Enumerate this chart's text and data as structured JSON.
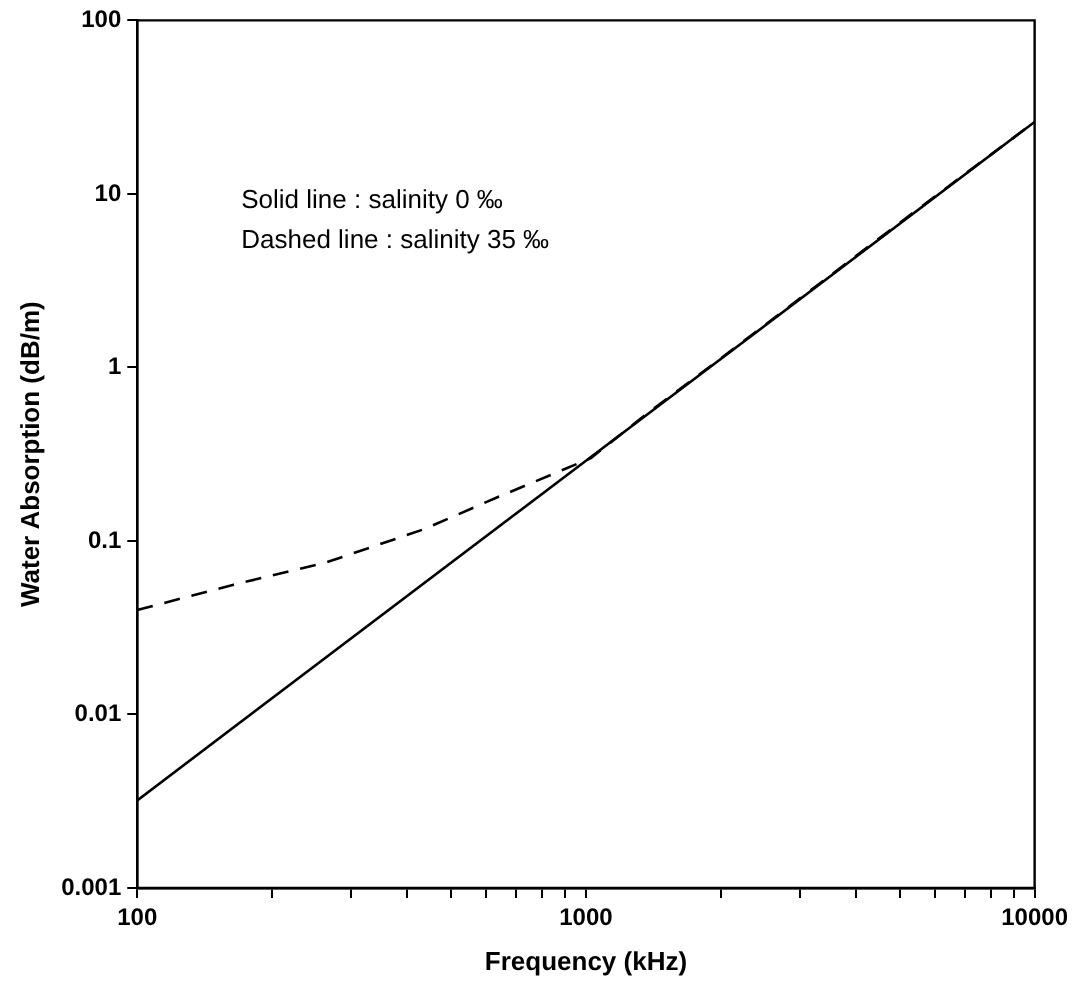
{
  "chart_data": {
    "type": "line",
    "xlabel": "Frequency (kHz)",
    "ylabel": "Water Absorption (dB/m)",
    "log": "xy",
    "grid": false,
    "legend": false,
    "marker": "none",
    "xlim": [
      100,
      10000
    ],
    "ylim": [
      0.001,
      100
    ],
    "xticks": [
      100,
      {
        "value": 200,
        "label": null
      },
      {
        "value": 300,
        "label": null
      },
      {
        "value": 400,
        "label": null
      },
      {
        "value": 500,
        "label": null
      },
      {
        "value": 600,
        "label": null
      },
      {
        "value": 700,
        "label": null
      },
      {
        "value": 800,
        "label": null
      },
      {
        "value": 900,
        "label": null
      },
      1000,
      {
        "value": 2000,
        "label": null
      },
      {
        "value": 3000,
        "label": null
      },
      {
        "value": 4000,
        "label": null
      },
      {
        "value": 5000,
        "label": null
      },
      {
        "value": 6000,
        "label": null
      },
      {
        "value": 7000,
        "label": null
      },
      {
        "value": 8000,
        "label": null
      },
      {
        "value": 9000,
        "label": null
      },
      10000
    ],
    "yticks": [
      0.001,
      0.01,
      0.1,
      1,
      10,
      100
    ],
    "annotations": [
      "Solid line : salinity 0 ‰",
      "Dashed line : salinity 35 ‰"
    ],
    "series": [
      {
        "color": "#000000",
        "line_style": "solid",
        "x": [
          100,
          1000,
          10000
        ],
        "values": [
          0.0032,
          0.29,
          26
        ]
      },
      {
        "color": "#000000",
        "line_style": "dashed",
        "x": [
          100,
          164,
          263,
          436,
          633,
          1025,
          1340,
          2000,
          5000,
          10000
        ],
        "values": [
          0.04,
          0.056,
          0.075,
          0.117,
          0.178,
          0.3,
          0.52,
          1.13,
          6.8,
          26
        ]
      }
    ]
  }
}
